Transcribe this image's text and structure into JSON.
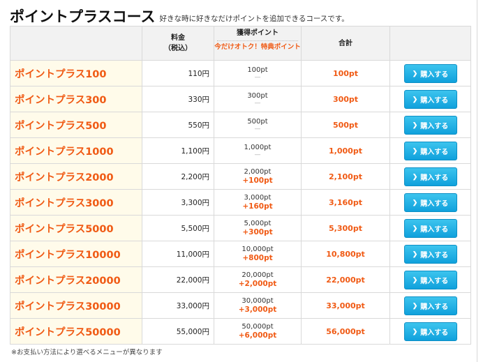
{
  "header": {
    "title": "ポイントプラスコース",
    "subtitle": "好きな時に好きなだけポイントを追加できるコースです。"
  },
  "table": {
    "headers": {
      "price_line1": "料金",
      "price_line2": "（税込）",
      "points_line1": "獲得ポイント",
      "points_line2": "今だけオトク！特典ポイント",
      "total": "合計"
    },
    "buy_label": "購入する",
    "rows": [
      {
        "name": "ポイントプラス100",
        "price": "110円",
        "points": "100pt",
        "bonus": "",
        "total": "100pt"
      },
      {
        "name": "ポイントプラス300",
        "price": "330円",
        "points": "300pt",
        "bonus": "",
        "total": "300pt"
      },
      {
        "name": "ポイントプラス500",
        "price": "550円",
        "points": "500pt",
        "bonus": "",
        "total": "500pt"
      },
      {
        "name": "ポイントプラス1000",
        "price": "1,100円",
        "points": "1,000pt",
        "bonus": "",
        "total": "1,000pt"
      },
      {
        "name": "ポイントプラス2000",
        "price": "2,200円",
        "points": "2,000pt",
        "bonus": "+100pt",
        "total": "2,100pt"
      },
      {
        "name": "ポイントプラス3000",
        "price": "3,300円",
        "points": "3,000pt",
        "bonus": "+160pt",
        "total": "3,160pt"
      },
      {
        "name": "ポイントプラス5000",
        "price": "5,500円",
        "points": "5,000pt",
        "bonus": "+300pt",
        "total": "5,300pt"
      },
      {
        "name": "ポイントプラス10000",
        "price": "11,000円",
        "points": "10,000pt",
        "bonus": "+800pt",
        "total": "10,800pt"
      },
      {
        "name": "ポイントプラス20000",
        "price": "22,000円",
        "points": "20,000pt",
        "bonus": "+2,000pt",
        "total": "22,000pt"
      },
      {
        "name": "ポイントプラス30000",
        "price": "33,000円",
        "points": "30,000pt",
        "bonus": "+3,000pt",
        "total": "33,000pt"
      },
      {
        "name": "ポイントプラス50000",
        "price": "55,000円",
        "points": "50,000pt",
        "bonus": "+6,000pt",
        "total": "56,000pt"
      }
    ]
  },
  "note": "※お支払い方法により選べるメニューが異なります",
  "colors": {
    "accent": "#f05a14",
    "button": "#10a1dc",
    "name_bg": "#fffbea"
  },
  "icons": {
    "button_icon": "chevron-right-icon",
    "empty_bonus": "dash-icon"
  }
}
